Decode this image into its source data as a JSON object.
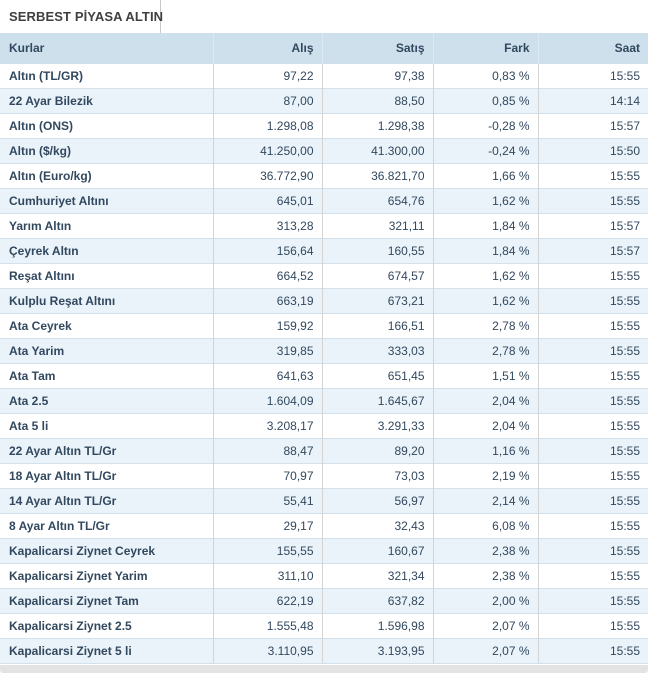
{
  "tab": {
    "title": "SERBEST PİYASA ALTIN"
  },
  "table": {
    "columns": {
      "kurlar": "Kurlar",
      "alis": "Alış",
      "satis": "Satış",
      "fark": "Fark",
      "saat": "Saat"
    },
    "rows": [
      {
        "kurlar": "Altın (TL/GR)",
        "alis": "97,22",
        "satis": "97,38",
        "fark": "0,83 %",
        "saat": "15:55"
      },
      {
        "kurlar": "22 Ayar Bilezik",
        "alis": "87,00",
        "satis": "88,50",
        "fark": "0,85 %",
        "saat": "14:14"
      },
      {
        "kurlar": "Altın (ONS)",
        "alis": "1.298,08",
        "satis": "1.298,38",
        "fark": "-0,28 %",
        "saat": "15:57"
      },
      {
        "kurlar": "Altın ($/kg)",
        "alis": "41.250,00",
        "satis": "41.300,00",
        "fark": "-0,24 %",
        "saat": "15:50"
      },
      {
        "kurlar": "Altın (Euro/kg)",
        "alis": "36.772,90",
        "satis": "36.821,70",
        "fark": "1,66 %",
        "saat": "15:55"
      },
      {
        "kurlar": "Cumhuriyet Altını",
        "alis": "645,01",
        "satis": "654,76",
        "fark": "1,62 %",
        "saat": "15:55"
      },
      {
        "kurlar": "Yarım Altın",
        "alis": "313,28",
        "satis": "321,11",
        "fark": "1,84 %",
        "saat": "15:57"
      },
      {
        "kurlar": "Çeyrek Altın",
        "alis": "156,64",
        "satis": "160,55",
        "fark": "1,84 %",
        "saat": "15:57"
      },
      {
        "kurlar": "Reşat Altını",
        "alis": "664,52",
        "satis": "674,57",
        "fark": "1,62 %",
        "saat": "15:55"
      },
      {
        "kurlar": "Kulplu Reşat Altını",
        "alis": "663,19",
        "satis": "673,21",
        "fark": "1,62 %",
        "saat": "15:55"
      },
      {
        "kurlar": "Ata Ceyrek",
        "alis": "159,92",
        "satis": "166,51",
        "fark": "2,78 %",
        "saat": "15:55"
      },
      {
        "kurlar": "Ata Yarim",
        "alis": "319,85",
        "satis": "333,03",
        "fark": "2,78 %",
        "saat": "15:55"
      },
      {
        "kurlar": "Ata Tam",
        "alis": "641,63",
        "satis": "651,45",
        "fark": "1,51 %",
        "saat": "15:55"
      },
      {
        "kurlar": "Ata 2.5",
        "alis": "1.604,09",
        "satis": "1.645,67",
        "fark": "2,04 %",
        "saat": "15:55"
      },
      {
        "kurlar": "Ata 5 li",
        "alis": "3.208,17",
        "satis": "3.291,33",
        "fark": "2,04 %",
        "saat": "15:55"
      },
      {
        "kurlar": "22 Ayar Altın TL/Gr",
        "alis": "88,47",
        "satis": "89,20",
        "fark": "1,16 %",
        "saat": "15:55"
      },
      {
        "kurlar": "18 Ayar Altın TL/Gr",
        "alis": "70,97",
        "satis": "73,03",
        "fark": "2,19 %",
        "saat": "15:55"
      },
      {
        "kurlar": "14 Ayar Altın TL/Gr",
        "alis": "55,41",
        "satis": "56,97",
        "fark": "2,14 %",
        "saat": "15:55"
      },
      {
        "kurlar": "8 Ayar Altın TL/Gr",
        "alis": "29,17",
        "satis": "32,43",
        "fark": "6,08 %",
        "saat": "15:55"
      },
      {
        "kurlar": "Kapalicarsi Ziynet Ceyrek",
        "alis": "155,55",
        "satis": "160,67",
        "fark": "2,38 %",
        "saat": "15:55"
      },
      {
        "kurlar": "Kapalicarsi Ziynet Yarim",
        "alis": "311,10",
        "satis": "321,34",
        "fark": "2,38 %",
        "saat": "15:55"
      },
      {
        "kurlar": "Kapalicarsi Ziynet Tam",
        "alis": "622,19",
        "satis": "637,82",
        "fark": "2,00 %",
        "saat": "15:55"
      },
      {
        "kurlar": "Kapalicarsi Ziynet 2.5",
        "alis": "1.555,48",
        "satis": "1.596,98",
        "fark": "2,07 %",
        "saat": "15:55"
      },
      {
        "kurlar": "Kapalicarsi Ziynet 5 li",
        "alis": "3.110,95",
        "satis": "3.193,95",
        "fark": "2,07 %",
        "saat": "15:55"
      }
    ]
  },
  "colors": {
    "header_bg": "#cde0ec",
    "row_alt_bg": "#eaf3fa",
    "text_navy": "#32485e",
    "row_border": "#d3e1ec",
    "column_divider": "#d4d4d4",
    "footer_bg": "#e3e3e3"
  }
}
